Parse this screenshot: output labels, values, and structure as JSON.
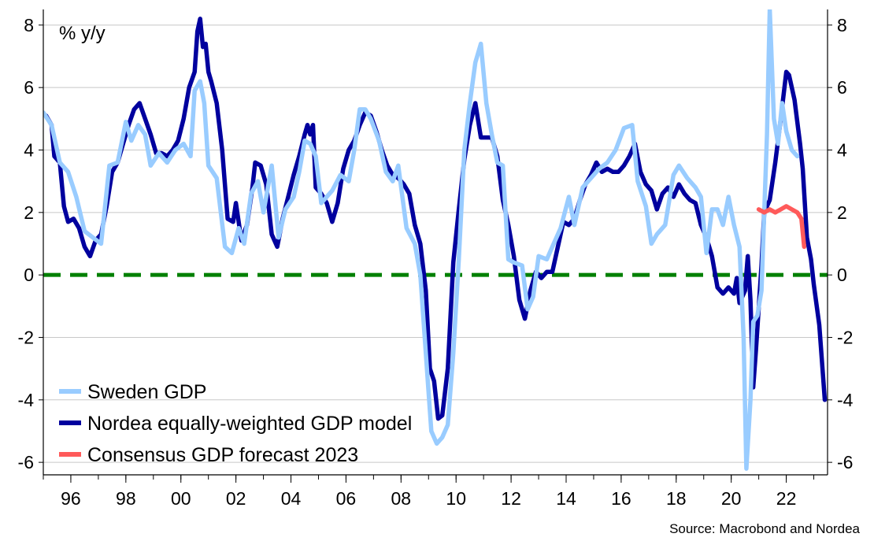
{
  "chart_data": {
    "type": "line",
    "unit_label": "% y/y",
    "source": "Source: Macrobond and Nordea",
    "xlim": [
      1995.0,
      2023.5
    ],
    "ylim": [
      -6.4,
      8.5
    ],
    "x_ticks": [
      {
        "value": 1996,
        "label": "96"
      },
      {
        "value": 1998,
        "label": "98"
      },
      {
        "value": 2000,
        "label": "00"
      },
      {
        "value": 2002,
        "label": "02"
      },
      {
        "value": 2004,
        "label": "04"
      },
      {
        "value": 2006,
        "label": "06"
      },
      {
        "value": 2008,
        "label": "08"
      },
      {
        "value": 2010,
        "label": "10"
      },
      {
        "value": 2012,
        "label": "12"
      },
      {
        "value": 2014,
        "label": "14"
      },
      {
        "value": 2016,
        "label": "16"
      },
      {
        "value": 2018,
        "label": "18"
      },
      {
        "value": 2020,
        "label": "20"
      },
      {
        "value": 2022,
        "label": "22"
      }
    ],
    "y_ticks": [
      {
        "value": 8,
        "label": "8"
      },
      {
        "value": 6,
        "label": "6"
      },
      {
        "value": 4,
        "label": "4"
      },
      {
        "value": 2,
        "label": "2"
      },
      {
        "value": 0,
        "label": "0"
      },
      {
        "value": -2,
        "label": "-2"
      },
      {
        "value": -4,
        "label": "-4"
      },
      {
        "value": -6,
        "label": "-6"
      }
    ],
    "reference_line": {
      "y": 0,
      "color": "#008000",
      "style": "dashed"
    },
    "legend": [
      {
        "name": "Sweden GDP",
        "color": "#99ccff"
      },
      {
        "name": "Nordea equally-weighted GDP model",
        "color": "#00009e"
      },
      {
        "name": "Consensus GDP forecast 2023",
        "color": "#ff5a5a"
      }
    ],
    "series": [
      {
        "name": "Nordea equally-weighted GDP model",
        "color": "#00009e",
        "points": [
          [
            1995.1,
            5.1
          ],
          [
            1995.3,
            4.8
          ],
          [
            1995.4,
            3.8
          ],
          [
            1995.6,
            3.6
          ],
          [
            1995.75,
            2.2
          ],
          [
            1995.9,
            1.7
          ],
          [
            1996.1,
            1.8
          ],
          [
            1996.3,
            1.5
          ],
          [
            1996.5,
            0.9
          ],
          [
            1996.7,
            0.6
          ],
          [
            1996.9,
            1.1
          ],
          [
            1997.1,
            1.3
          ],
          [
            1997.3,
            2.2
          ],
          [
            1997.5,
            3.3
          ],
          [
            1997.7,
            3.6
          ],
          [
            1997.9,
            4.2
          ],
          [
            1998.1,
            4.8
          ],
          [
            1998.3,
            5.3
          ],
          [
            1998.5,
            5.5
          ],
          [
            1998.7,
            5.0
          ],
          [
            1998.9,
            4.5
          ],
          [
            1999.1,
            3.9
          ],
          [
            1999.3,
            3.9
          ],
          [
            1999.5,
            3.8
          ],
          [
            1999.7,
            4.0
          ],
          [
            1999.9,
            4.3
          ],
          [
            2000.1,
            5.0
          ],
          [
            2000.3,
            6.0
          ],
          [
            2000.5,
            6.5
          ],
          [
            2000.6,
            7.8
          ],
          [
            2000.7,
            8.2
          ],
          [
            2000.8,
            7.3
          ],
          [
            2000.9,
            7.4
          ],
          [
            2001.0,
            6.5
          ],
          [
            2001.1,
            6.2
          ],
          [
            2001.3,
            5.5
          ],
          [
            2001.5,
            4.0
          ],
          [
            2001.7,
            1.8
          ],
          [
            2001.9,
            1.7
          ],
          [
            2002.0,
            2.3
          ],
          [
            2002.2,
            1.1
          ],
          [
            2002.4,
            1.6
          ],
          [
            2002.6,
            2.8
          ],
          [
            2002.7,
            3.6
          ],
          [
            2002.9,
            3.5
          ],
          [
            2003.1,
            2.9
          ],
          [
            2003.3,
            1.3
          ],
          [
            2003.5,
            0.9
          ],
          [
            2003.7,
            1.8
          ],
          [
            2003.9,
            2.5
          ],
          [
            2004.1,
            3.2
          ],
          [
            2004.3,
            3.8
          ],
          [
            2004.5,
            4.5
          ],
          [
            2004.6,
            4.8
          ],
          [
            2004.7,
            4.5
          ],
          [
            2004.8,
            4.8
          ],
          [
            2004.9,
            2.8
          ],
          [
            2005.1,
            2.6
          ],
          [
            2005.3,
            2.3
          ],
          [
            2005.5,
            1.7
          ],
          [
            2005.7,
            2.3
          ],
          [
            2005.9,
            3.4
          ],
          [
            2006.1,
            4.0
          ],
          [
            2006.3,
            4.3
          ],
          [
            2006.5,
            4.8
          ],
          [
            2006.7,
            5.2
          ],
          [
            2006.9,
            5.1
          ],
          [
            2007.1,
            4.6
          ],
          [
            2007.3,
            4.0
          ],
          [
            2007.5,
            3.5
          ],
          [
            2007.7,
            3.2
          ],
          [
            2007.9,
            3.1
          ],
          [
            2008.1,
            2.9
          ],
          [
            2008.3,
            2.6
          ],
          [
            2008.5,
            1.6
          ],
          [
            2008.7,
            1.0
          ],
          [
            2008.9,
            -0.5
          ],
          [
            2009.05,
            -3.0
          ],
          [
            2009.2,
            -3.4
          ],
          [
            2009.35,
            -4.6
          ],
          [
            2009.5,
            -4.5
          ],
          [
            2009.7,
            -3.0
          ],
          [
            2009.9,
            0.4
          ],
          [
            2010.1,
            2.1
          ],
          [
            2010.3,
            3.7
          ],
          [
            2010.5,
            4.8
          ],
          [
            2010.7,
            5.5
          ],
          [
            2010.9,
            4.4
          ],
          [
            2011.1,
            4.4
          ],
          [
            2011.3,
            4.4
          ],
          [
            2011.5,
            3.8
          ],
          [
            2011.7,
            2.4
          ],
          [
            2011.9,
            1.6
          ],
          [
            2012.1,
            0.6
          ],
          [
            2012.3,
            -0.8
          ],
          [
            2012.5,
            -1.4
          ],
          [
            2012.7,
            -0.5
          ],
          [
            2012.9,
            0.1
          ],
          [
            2013.1,
            -0.1
          ],
          [
            2013.3,
            0.1
          ],
          [
            2013.5,
            0.1
          ],
          [
            2013.7,
            0.9
          ],
          [
            2013.9,
            1.7
          ],
          [
            2014.1,
            1.6
          ],
          [
            2014.3,
            1.8
          ],
          [
            2014.5,
            2.4
          ],
          [
            2014.7,
            2.9
          ],
          [
            2014.9,
            3.2
          ],
          [
            2015.1,
            3.6
          ],
          [
            2015.3,
            3.3
          ],
          [
            2015.5,
            3.4
          ],
          [
            2015.7,
            3.3
          ],
          [
            2015.9,
            3.3
          ],
          [
            2016.1,
            3.5
          ],
          [
            2016.3,
            3.8
          ],
          [
            2016.5,
            4.2
          ],
          [
            2016.7,
            3.3
          ],
          [
            2016.9,
            2.9
          ],
          [
            2017.1,
            2.7
          ],
          [
            2017.3,
            2.1
          ],
          [
            2017.5,
            2.6
          ],
          [
            2017.7,
            2.8
          ],
          [
            2017.9,
            2.5
          ],
          [
            2018.1,
            2.9
          ],
          [
            2018.3,
            2.6
          ],
          [
            2018.5,
            2.4
          ],
          [
            2018.7,
            2.3
          ],
          [
            2018.9,
            1.6
          ],
          [
            2019.1,
            1.2
          ],
          [
            2019.3,
            0.6
          ],
          [
            2019.5,
            -0.4
          ],
          [
            2019.7,
            -0.6
          ],
          [
            2019.9,
            -0.4
          ],
          [
            2020.1,
            -0.6
          ],
          [
            2020.2,
            -0.1
          ],
          [
            2020.3,
            -0.9
          ],
          [
            2020.5,
            -0.5
          ],
          [
            2020.6,
            0.6
          ],
          [
            2020.7,
            -0.8
          ],
          [
            2020.8,
            -3.6
          ],
          [
            2020.9,
            -2.4
          ],
          [
            2021.1,
            0.3
          ],
          [
            2021.2,
            2.0
          ],
          [
            2021.4,
            2.4
          ],
          [
            2021.6,
            3.6
          ],
          [
            2021.8,
            5.0
          ],
          [
            2022.0,
            6.5
          ],
          [
            2022.1,
            6.4
          ],
          [
            2022.3,
            5.6
          ],
          [
            2022.5,
            4.2
          ],
          [
            2022.6,
            3.4
          ],
          [
            2022.75,
            1.2
          ],
          [
            2022.9,
            0.5
          ],
          [
            2023.0,
            -0.3
          ],
          [
            2023.2,
            -1.6
          ],
          [
            2023.4,
            -4.0
          ]
        ]
      },
      {
        "name": "Sweden GDP",
        "color": "#99ccff",
        "points": [
          [
            1995.0,
            5.2
          ],
          [
            1995.3,
            4.8
          ],
          [
            1995.6,
            3.6
          ],
          [
            1995.9,
            3.3
          ],
          [
            1996.2,
            2.5
          ],
          [
            1996.5,
            1.4
          ],
          [
            1996.8,
            1.2
          ],
          [
            1997.1,
            1.0
          ],
          [
            1997.4,
            3.5
          ],
          [
            1997.7,
            3.6
          ],
          [
            1998.0,
            4.9
          ],
          [
            1998.2,
            4.3
          ],
          [
            1998.45,
            4.8
          ],
          [
            1998.7,
            4.5
          ],
          [
            1998.9,
            3.5
          ],
          [
            1999.2,
            3.9
          ],
          [
            1999.5,
            3.6
          ],
          [
            1999.8,
            4.0
          ],
          [
            2000.1,
            4.2
          ],
          [
            2000.35,
            3.8
          ],
          [
            2000.5,
            5.9
          ],
          [
            2000.7,
            6.2
          ],
          [
            2000.85,
            5.5
          ],
          [
            2001.0,
            3.5
          ],
          [
            2001.3,
            3.1
          ],
          [
            2001.6,
            0.9
          ],
          [
            2001.85,
            0.7
          ],
          [
            2002.1,
            1.5
          ],
          [
            2002.3,
            1.0
          ],
          [
            2002.55,
            2.6
          ],
          [
            2002.8,
            3.0
          ],
          [
            2003.0,
            2.0
          ],
          [
            2003.3,
            3.5
          ],
          [
            2003.55,
            1.2
          ],
          [
            2003.8,
            2.1
          ],
          [
            2004.1,
            2.5
          ],
          [
            2004.3,
            3.3
          ],
          [
            2004.5,
            4.3
          ],
          [
            2004.7,
            4.2
          ],
          [
            2004.9,
            3.8
          ],
          [
            2005.1,
            2.3
          ],
          [
            2005.5,
            2.7
          ],
          [
            2005.8,
            3.2
          ],
          [
            2006.1,
            3.0
          ],
          [
            2006.3,
            4.0
          ],
          [
            2006.5,
            5.3
          ],
          [
            2006.7,
            5.3
          ],
          [
            2006.9,
            5.0
          ],
          [
            2007.2,
            4.3
          ],
          [
            2007.45,
            3.3
          ],
          [
            2007.7,
            3.0
          ],
          [
            2007.9,
            3.5
          ],
          [
            2008.2,
            1.5
          ],
          [
            2008.5,
            1.0
          ],
          [
            2008.7,
            0.0
          ],
          [
            2008.9,
            -2.5
          ],
          [
            2009.1,
            -5.0
          ],
          [
            2009.3,
            -5.4
          ],
          [
            2009.5,
            -5.2
          ],
          [
            2009.7,
            -4.8
          ],
          [
            2009.9,
            -2.5
          ],
          [
            2010.1,
            0.5
          ],
          [
            2010.3,
            4.0
          ],
          [
            2010.5,
            5.5
          ],
          [
            2010.7,
            6.8
          ],
          [
            2010.9,
            7.4
          ],
          [
            2011.1,
            5.5
          ],
          [
            2011.3,
            4.5
          ],
          [
            2011.5,
            3.6
          ],
          [
            2011.7,
            3.5
          ],
          [
            2011.9,
            0.5
          ],
          [
            2012.1,
            0.4
          ],
          [
            2012.4,
            0.3
          ],
          [
            2012.6,
            -1.1
          ],
          [
            2012.8,
            -0.7
          ],
          [
            2013.0,
            0.6
          ],
          [
            2013.3,
            0.5
          ],
          [
            2013.5,
            0.9
          ],
          [
            2013.8,
            1.5
          ],
          [
            2014.1,
            2.5
          ],
          [
            2014.3,
            1.6
          ],
          [
            2014.6,
            2.8
          ],
          [
            2014.9,
            3.1
          ],
          [
            2015.2,
            3.4
          ],
          [
            2015.5,
            3.6
          ],
          [
            2015.8,
            4.0
          ],
          [
            2016.1,
            4.7
          ],
          [
            2016.4,
            4.8
          ],
          [
            2016.6,
            3.0
          ],
          [
            2016.9,
            2.2
          ],
          [
            2017.1,
            1.0
          ],
          [
            2017.3,
            1.3
          ],
          [
            2017.6,
            1.6
          ],
          [
            2017.9,
            3.2
          ],
          [
            2018.1,
            3.5
          ],
          [
            2018.4,
            3.1
          ],
          [
            2018.7,
            2.8
          ],
          [
            2018.9,
            2.5
          ],
          [
            2019.1,
            0.7
          ],
          [
            2019.3,
            2.1
          ],
          [
            2019.5,
            2.1
          ],
          [
            2019.7,
            1.6
          ],
          [
            2019.9,
            2.5
          ],
          [
            2020.1,
            1.6
          ],
          [
            2020.3,
            0.9
          ],
          [
            2020.45,
            -2.0
          ],
          [
            2020.55,
            -6.2
          ],
          [
            2020.7,
            -4.0
          ],
          [
            2020.8,
            -1.5
          ],
          [
            2020.95,
            -1.3
          ],
          [
            2021.1,
            -0.5
          ],
          [
            2021.3,
            4.5
          ],
          [
            2021.4,
            8.5
          ],
          [
            2021.55,
            5.0
          ],
          [
            2021.7,
            4.2
          ],
          [
            2021.85,
            5.5
          ],
          [
            2022.0,
            4.6
          ],
          [
            2022.2,
            4.0
          ],
          [
            2022.4,
            3.8
          ]
        ]
      },
      {
        "name": "Consensus GDP forecast 2023",
        "color": "#ff5a5a",
        "points": [
          [
            2021.0,
            2.1
          ],
          [
            2021.2,
            2.0
          ],
          [
            2021.4,
            2.1
          ],
          [
            2021.6,
            2.0
          ],
          [
            2021.8,
            2.1
          ],
          [
            2022.0,
            2.2
          ],
          [
            2022.2,
            2.1
          ],
          [
            2022.4,
            2.0
          ],
          [
            2022.55,
            1.8
          ],
          [
            2022.65,
            0.9
          ]
        ]
      }
    ]
  }
}
